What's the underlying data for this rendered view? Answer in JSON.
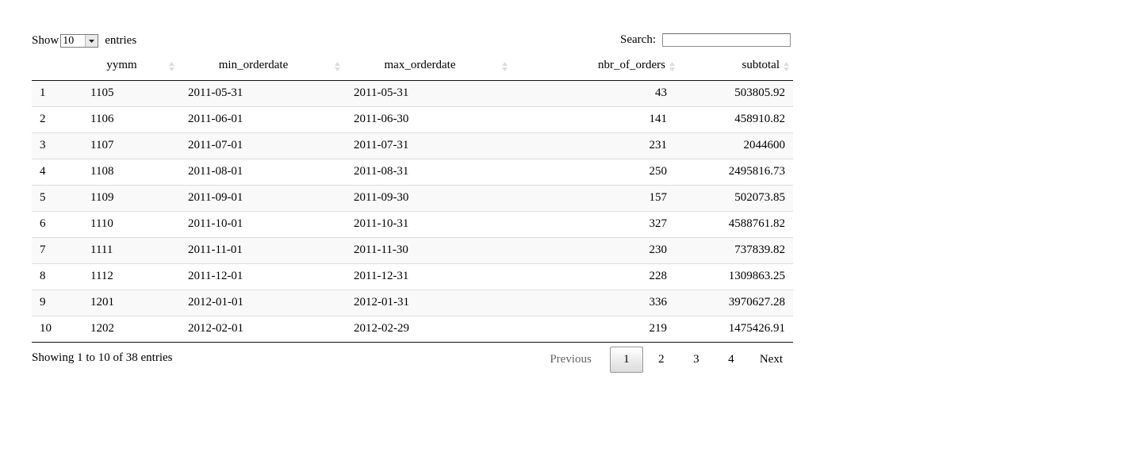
{
  "length_control": {
    "label_before": "Show",
    "selected": "10",
    "label_after": "entries"
  },
  "search": {
    "label": "Search:",
    "value": "",
    "placeholder": ""
  },
  "table": {
    "columns": [
      "",
      "yymm",
      "min_orderdate",
      "max_orderdate",
      "nbr_of_orders",
      "subtotal"
    ],
    "rows": [
      [
        "1",
        "1105",
        "2011-05-31",
        "2011-05-31",
        "43",
        "503805.92"
      ],
      [
        "2",
        "1106",
        "2011-06-01",
        "2011-06-30",
        "141",
        "458910.82"
      ],
      [
        "3",
        "1107",
        "2011-07-01",
        "2011-07-31",
        "231",
        "2044600"
      ],
      [
        "4",
        "1108",
        "2011-08-01",
        "2011-08-31",
        "250",
        "2495816.73"
      ],
      [
        "5",
        "1109",
        "2011-09-01",
        "2011-09-30",
        "157",
        "502073.85"
      ],
      [
        "6",
        "1110",
        "2011-10-01",
        "2011-10-31",
        "327",
        "4588761.82"
      ],
      [
        "7",
        "1111",
        "2011-11-01",
        "2011-11-30",
        "230",
        "737839.82"
      ],
      [
        "8",
        "1112",
        "2011-12-01",
        "2011-12-31",
        "228",
        "1309863.25"
      ],
      [
        "9",
        "1201",
        "2012-01-01",
        "2012-01-31",
        "336",
        "3970627.28"
      ],
      [
        "10",
        "1202",
        "2012-02-01",
        "2012-02-29",
        "219",
        "1475426.91"
      ]
    ]
  },
  "info": "Showing 1 to 10 of 38 entries",
  "pagination": {
    "previous": "Previous",
    "pages": [
      "1",
      "2",
      "3",
      "4"
    ],
    "current": "1",
    "next": "Next"
  },
  "colors": {
    "row_stripe": "#f9f9f9",
    "row_border": "#dddddd",
    "header_border": "#111111",
    "disabled_text": "#666666"
  }
}
